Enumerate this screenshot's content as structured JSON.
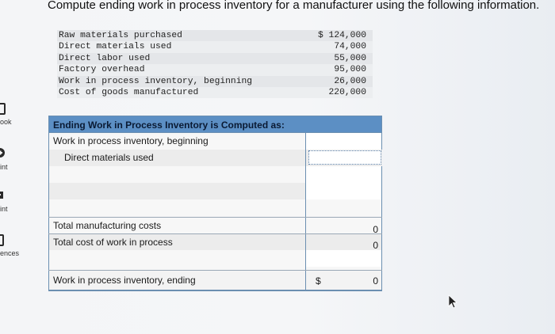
{
  "question": {
    "title": "Compute ending work in process inventory for a manufacturer using the following information."
  },
  "given_data": [
    {
      "label": "Raw materials purchased",
      "value": "$ 124,000"
    },
    {
      "label": "Direct materials used",
      "value": "74,000"
    },
    {
      "label": "Direct labor used",
      "value": "55,000"
    },
    {
      "label": "Factory overhead",
      "value": "95,000"
    },
    {
      "label": "Work in process inventory, beginning",
      "value": "26,000"
    },
    {
      "label": "Cost of goods manufactured",
      "value": "220,000"
    }
  ],
  "calc_table": {
    "header": "Ending Work in Process Inventory is Computed as:",
    "row_beginning": "Work in process inventory, beginning",
    "row_dm": "Direct materials used",
    "row_total_mfg": "Total manufacturing costs",
    "total_mfg_value": "0",
    "row_total_wip": "Total cost of work in process",
    "total_wip_value": "0",
    "row_ending": "Work in process inventory, ending",
    "ending_currency": "$",
    "ending_value": "0"
  },
  "sidenav": {
    "items": [
      {
        "label": "ook"
      },
      {
        "label": "int"
      },
      {
        "label": "int"
      },
      {
        "label": "ences"
      }
    ]
  },
  "colors": {
    "table_header": "#5c8fc4",
    "table_border": "#6b8fb1",
    "page_bg": "#f4f5f7"
  }
}
